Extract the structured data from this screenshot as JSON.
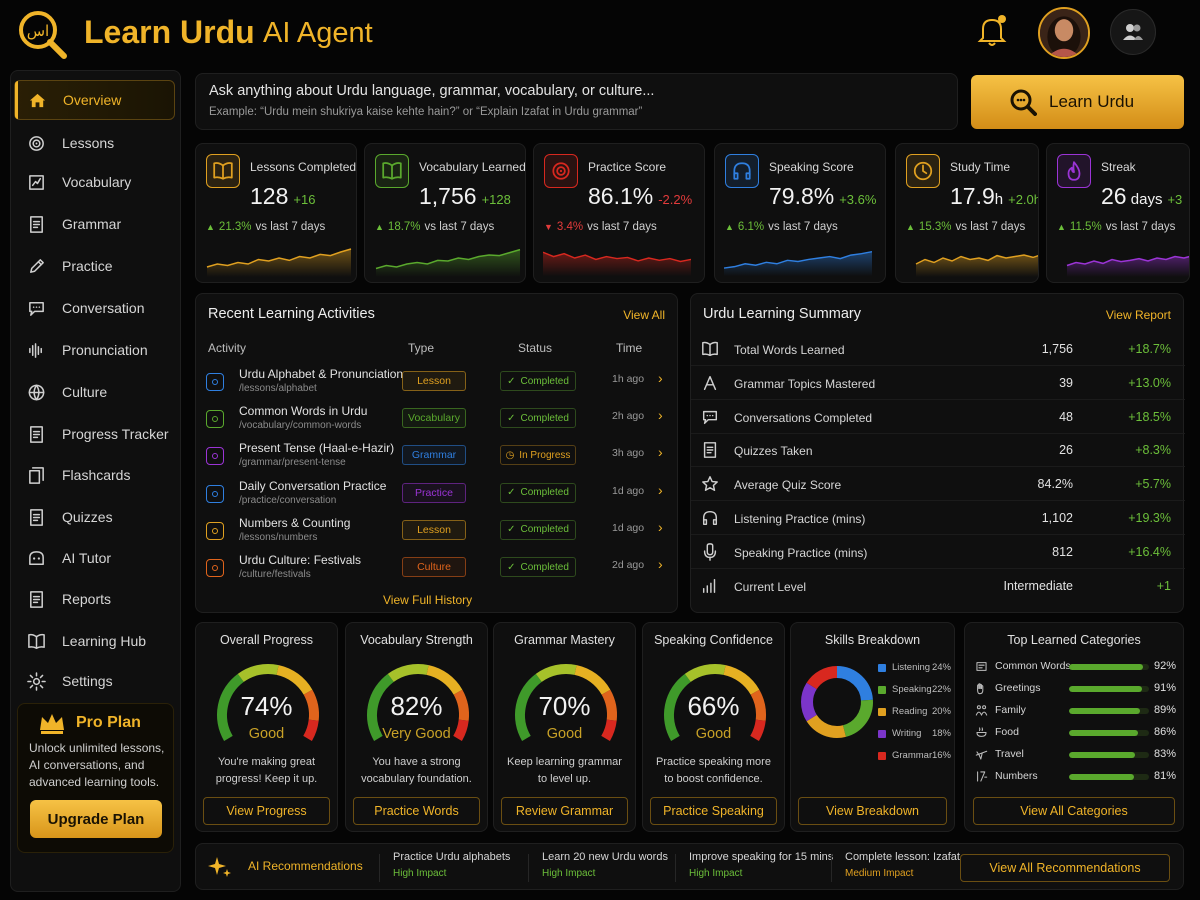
{
  "header": {
    "app_name": "Learn Urdu",
    "app_subtitle": "AI Agent",
    "logo_glyph": "اس"
  },
  "sidebar": {
    "items": [
      {
        "label": "Overview",
        "icon": "home-icon",
        "active": true
      },
      {
        "label": "Lessons",
        "icon": "target-icon"
      },
      {
        "label": "Vocabulary",
        "icon": "vocabulary-icon"
      },
      {
        "label": "Grammar",
        "icon": "document-icon"
      },
      {
        "label": "Practice",
        "icon": "pencil-icon"
      },
      {
        "label": "Conversation",
        "icon": "chat-icon"
      },
      {
        "label": "Pronunciation",
        "icon": "soundwave-icon"
      },
      {
        "label": "Culture",
        "icon": "globe-icon"
      },
      {
        "label": "Progress Tracker",
        "icon": "checklist-icon"
      },
      {
        "label": "Flashcards",
        "icon": "cards-icon"
      },
      {
        "label": "Quizzes",
        "icon": "quiz-icon"
      },
      {
        "label": "AI Tutor",
        "icon": "ai-icon"
      },
      {
        "label": "Reports",
        "icon": "report-icon"
      },
      {
        "label": "Learning Hub",
        "icon": "book-icon"
      },
      {
        "label": "Settings",
        "icon": "gear-icon"
      }
    ],
    "pro": {
      "title": "Pro Plan",
      "description": "Unlock unlimited lessons, AI conversations, and advanced learning tools.",
      "button": "Upgrade Plan"
    }
  },
  "search": {
    "placeholder": "Ask anything about Urdu language, grammar, vocabulary, or culture...",
    "example": "Example: “Urdu mein shukriya kaise kehte hain?” or “Explain Izafat in Urdu grammar”",
    "button": "Learn Urdu"
  },
  "stats": [
    {
      "label": "Lessons Completed",
      "value": "128",
      "unit": "",
      "delta": "+16",
      "delta_color": "#6cbf3a",
      "trend": "21.3%",
      "trend_dir": "up",
      "trend_suffix": "vs last 7 days",
      "color": "#e0a020",
      "icon": "book-open-icon",
      "spark": [
        0.2,
        0.3,
        0.25,
        0.35,
        0.3,
        0.45,
        0.4,
        0.5,
        0.42,
        0.55,
        0.5,
        0.62,
        0.58,
        0.7,
        0.8
      ]
    },
    {
      "label": "Vocabulary Learned",
      "value": "1,756",
      "unit": "",
      "delta": "+128",
      "delta_color": "#6cbf3a",
      "trend": "18.7%",
      "trend_dir": "up",
      "trend_suffix": "vs last 7 days",
      "color": "#5aa92d",
      "icon": "book-open-icon",
      "spark": [
        0.15,
        0.25,
        0.2,
        0.3,
        0.35,
        0.3,
        0.42,
        0.4,
        0.5,
        0.45,
        0.55,
        0.6,
        0.58,
        0.68,
        0.78
      ]
    },
    {
      "label": "Practice Score",
      "value": "86.1%",
      "unit": "",
      "delta": "-2.2%",
      "delta_color": "#e23b3b",
      "trend": "3.4%",
      "trend_dir": "down",
      "trend_suffix": "vs last 7 days",
      "color": "#d8281f",
      "icon": "target-icon",
      "spark": [
        0.7,
        0.55,
        0.65,
        0.5,
        0.6,
        0.45,
        0.55,
        0.48,
        0.52,
        0.4,
        0.5,
        0.42,
        0.48,
        0.38,
        0.45
      ]
    },
    {
      "label": "Speaking Score",
      "value": "79.8%",
      "unit": "",
      "delta": "+3.6%",
      "delta_color": "#6cbf3a",
      "trend": "6.1%",
      "trend_dir": "up",
      "trend_suffix": "vs last 7 days",
      "color": "#2f7fe0",
      "icon": "headphones-icon",
      "spark": [
        0.15,
        0.2,
        0.3,
        0.25,
        0.35,
        0.3,
        0.42,
        0.38,
        0.45,
        0.5,
        0.55,
        0.48,
        0.6,
        0.65,
        0.72
      ]
    },
    {
      "label": "Study Time",
      "value": "17.9",
      "unit": "h",
      "delta": "+2.0h",
      "delta_color": "#6cbf3a",
      "trend": "15.3%",
      "trend_dir": "up",
      "trend_suffix": "vs last 7 days",
      "color": "#e0a020",
      "icon": "clock-icon",
      "spark": [
        0.3,
        0.45,
        0.35,
        0.5,
        0.4,
        0.55,
        0.45,
        0.5,
        0.42,
        0.58,
        0.5,
        0.55,
        0.6,
        0.52,
        0.62
      ]
    },
    {
      "label": "Streak",
      "value": "26",
      "unit": "days",
      "delta": "+3",
      "delta_color": "#6cbf3a",
      "trend": "11.5%",
      "trend_dir": "up",
      "trend_suffix": "vs last 7 days",
      "color": "#9b34d6",
      "icon": "flame-icon",
      "spark": [
        0.25,
        0.35,
        0.3,
        0.4,
        0.32,
        0.45,
        0.38,
        0.42,
        0.48,
        0.4,
        0.5,
        0.45,
        0.55,
        0.5,
        0.58
      ]
    }
  ],
  "activities": {
    "title": "Recent Learning Activities",
    "view_all": "View All",
    "headers": {
      "activity": "Activity",
      "type": "Type",
      "status": "Status",
      "time": "Time"
    },
    "rows": [
      {
        "name": "Urdu Alphabet & Pronunciation",
        "path": "/lessons/alphabet",
        "type": "Lesson",
        "type_color": "#e0a020",
        "status": "Completed",
        "status_color": "#6cbf3a",
        "time": "1h ago",
        "icon_color": "#2f7fe0"
      },
      {
        "name": "Common Words in Urdu",
        "path": "/vocabulary/common-words",
        "type": "Vocabulary",
        "type_color": "#5aa92d",
        "status": "Completed",
        "status_color": "#6cbf3a",
        "time": "2h ago",
        "icon_color": "#5aa92d"
      },
      {
        "name": "Present Tense (Haal-e-Hazir)",
        "path": "/grammar/present-tense",
        "type": "Grammar",
        "type_color": "#2f7fe0",
        "status": "In Progress",
        "status_color": "#e0a020",
        "time": "3h ago",
        "icon_color": "#9b34d6"
      },
      {
        "name": "Daily Conversation Practice",
        "path": "/practice/conversation",
        "type": "Practice",
        "type_color": "#9b34d6",
        "status": "Completed",
        "status_color": "#6cbf3a",
        "time": "1d ago",
        "icon_color": "#2f7fe0"
      },
      {
        "name": "Numbers & Counting",
        "path": "/lessons/numbers",
        "type": "Lesson",
        "type_color": "#e0a020",
        "status": "Completed",
        "status_color": "#6cbf3a",
        "time": "1d ago",
        "icon_color": "#e0a020"
      },
      {
        "name": "Urdu Culture: Festivals",
        "path": "/culture/festivals",
        "type": "Culture",
        "type_color": "#e0641c",
        "status": "Completed",
        "status_color": "#6cbf3a",
        "time": "2d ago",
        "icon_color": "#e0641c"
      }
    ],
    "footer": "View Full History"
  },
  "summary": {
    "title": "Urdu Learning Summary",
    "view_report": "View Report",
    "rows": [
      {
        "label": "Total Words Learned",
        "value": "1,756",
        "delta": "+18.7%",
        "icon": "book-open-icon"
      },
      {
        "label": "Grammar Topics Mastered",
        "value": "39",
        "delta": "+13.0%",
        "icon": "grammar-icon"
      },
      {
        "label": "Conversations Completed",
        "value": "48",
        "delta": "+18.5%",
        "icon": "chat-icon"
      },
      {
        "label": "Quizzes Taken",
        "value": "26",
        "delta": "+8.3%",
        "icon": "quiz-icon"
      },
      {
        "label": "Average Quiz Score",
        "value": "84.2%",
        "delta": "+5.7%",
        "icon": "star-icon"
      },
      {
        "label": "Listening Practice (mins)",
        "value": "1,102",
        "delta": "+19.3%",
        "icon": "headphones-icon"
      },
      {
        "label": "Speaking Practice (mins)",
        "value": "812",
        "delta": "+16.4%",
        "icon": "microphone-icon"
      },
      {
        "label": "Current Level",
        "value": "Intermediate",
        "delta": "+1",
        "icon": "level-icon"
      }
    ]
  },
  "gauges": [
    {
      "title": "Overall Progress",
      "value": 74,
      "pct": "74%",
      "rating": "Good",
      "desc": "You're making great progress! Keep it up.",
      "button": "View Progress"
    },
    {
      "title": "Vocabulary Strength",
      "value": 82,
      "pct": "82%",
      "rating": "Very Good",
      "desc": "You have a strong vocabulary foundation.",
      "button": "Practice Words"
    },
    {
      "title": "Grammar Mastery",
      "value": 70,
      "pct": "70%",
      "rating": "Good",
      "desc": "Keep learning grammar to level up.",
      "button": "Review Grammar"
    },
    {
      "title": "Speaking Confidence",
      "value": 66,
      "pct": "66%",
      "rating": "Good",
      "desc": "Practice speaking more to boost confidence.",
      "button": "Practice Speaking"
    }
  ],
  "skills": {
    "title": "Skills Breakdown",
    "items": [
      {
        "name": "Listening",
        "value": 24,
        "label": "24%",
        "color": "#2f7fe0"
      },
      {
        "name": "Speaking",
        "value": 22,
        "label": "22%",
        "color": "#5aa92d"
      },
      {
        "name": "Reading",
        "value": 20,
        "label": "20%",
        "color": "#e0a020"
      },
      {
        "name": "Writing",
        "value": 18,
        "label": "18%",
        "color": "#7b35c9"
      },
      {
        "name": "Grammar",
        "value": 16,
        "label": "16%",
        "color": "#d8281f"
      }
    ],
    "button": "View Breakdown"
  },
  "categories": {
    "title": "Top Learned Categories",
    "items": [
      {
        "name": "Common Words",
        "value": 92,
        "label": "92%",
        "icon": "words-icon"
      },
      {
        "name": "Greetings",
        "value": 91,
        "label": "91%",
        "icon": "greeting-icon"
      },
      {
        "name": "Family",
        "value": 89,
        "label": "89%",
        "icon": "family-icon"
      },
      {
        "name": "Food",
        "value": 86,
        "label": "86%",
        "icon": "food-icon"
      },
      {
        "name": "Travel",
        "value": 83,
        "label": "83%",
        "icon": "travel-icon"
      },
      {
        "name": "Numbers",
        "value": 81,
        "label": "81%",
        "icon": "numbers-icon"
      }
    ],
    "button": "View All Categories"
  },
  "recommendations": {
    "title": "AI Recommendations",
    "items": [
      {
        "text": "Practice Urdu alphabets",
        "impact": "High Impact",
        "impact_color": "#6cbf3a"
      },
      {
        "text": "Learn 20 new Urdu words",
        "impact": "High Impact",
        "impact_color": "#6cbf3a"
      },
      {
        "text": "Improve speaking for 15 mins",
        "impact": "High Impact",
        "impact_color": "#6cbf3a"
      },
      {
        "text": "Complete lesson: Izafat",
        "impact": "Medium Impact",
        "impact_color": "#e0a020"
      }
    ],
    "button": "View All Recommendations"
  }
}
